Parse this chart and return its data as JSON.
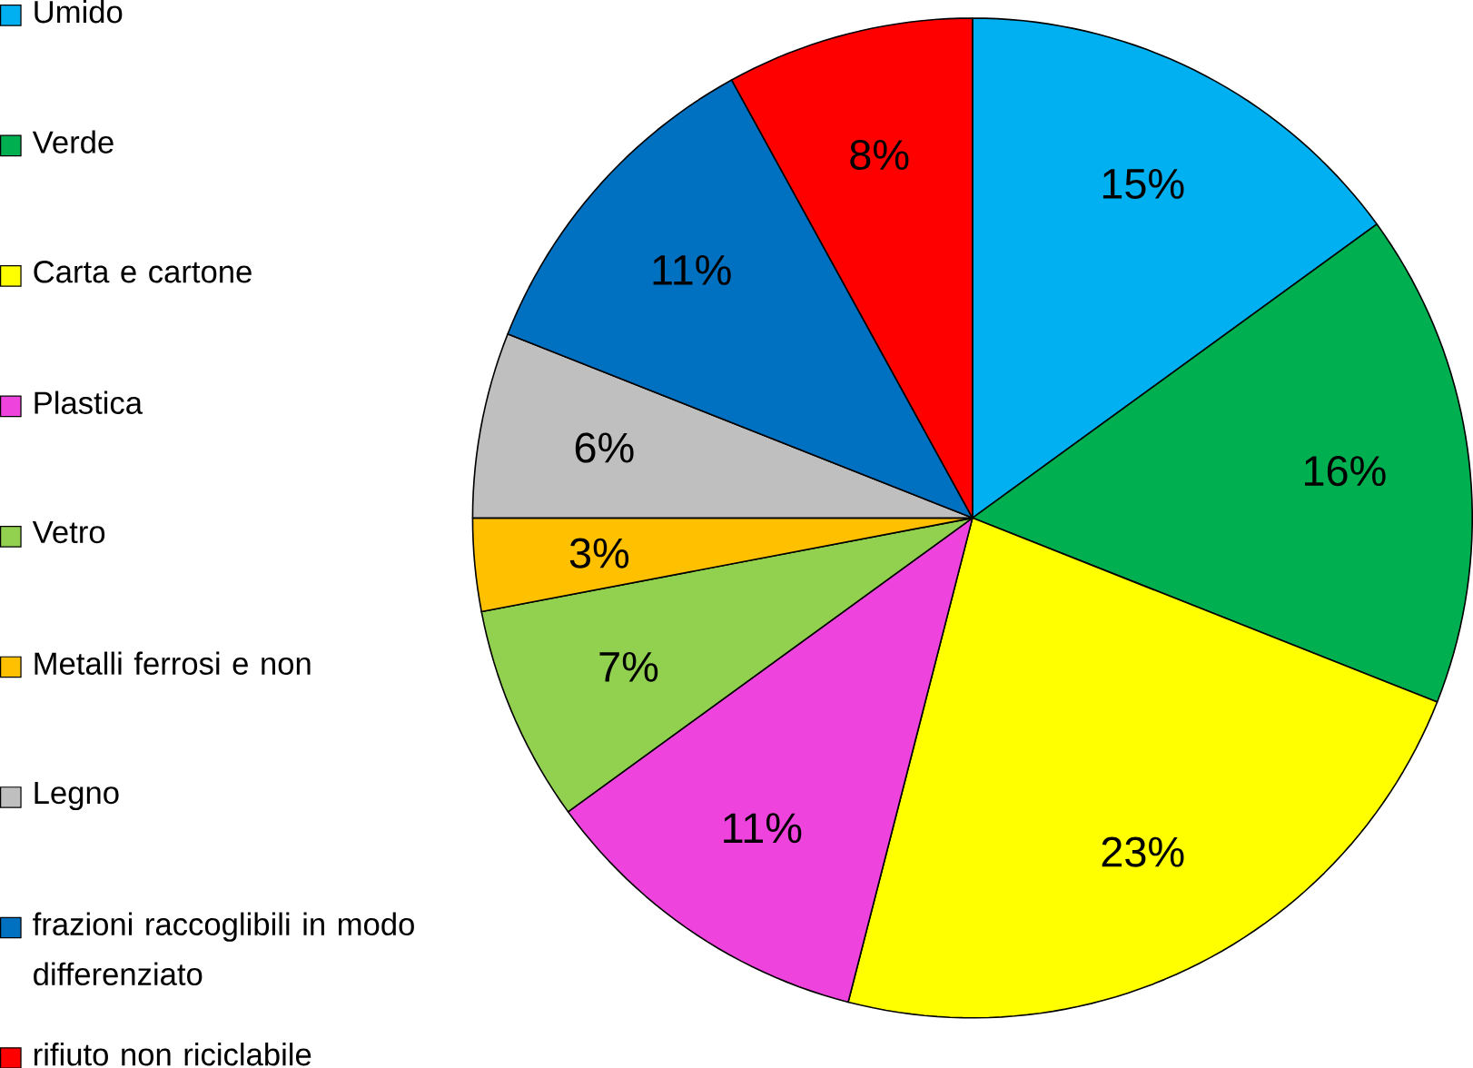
{
  "chart_data": {
    "type": "pie",
    "categories": [
      "Umido",
      "Verde",
      "Carta e cartone",
      "Plastica",
      "Vetro",
      "Metalli ferrosi e non",
      "Legno",
      "frazioni raccoglibili in modo differenziato",
      "rifiuto non riciclabile"
    ],
    "values": [
      15,
      16,
      23,
      11,
      7,
      3,
      6,
      11,
      8
    ],
    "value_labels": [
      "15%",
      "16%",
      "23%",
      "11%",
      "7%",
      "3%",
      "6%",
      "11%",
      "8%"
    ],
    "colors": [
      "#00b0f0",
      "#00b050",
      "#ffff00",
      "#ee44dd",
      "#92d050",
      "#ffc000",
      "#bfbfbf",
      "#0070c0",
      "#ff0000"
    ],
    "legend": "left"
  }
}
